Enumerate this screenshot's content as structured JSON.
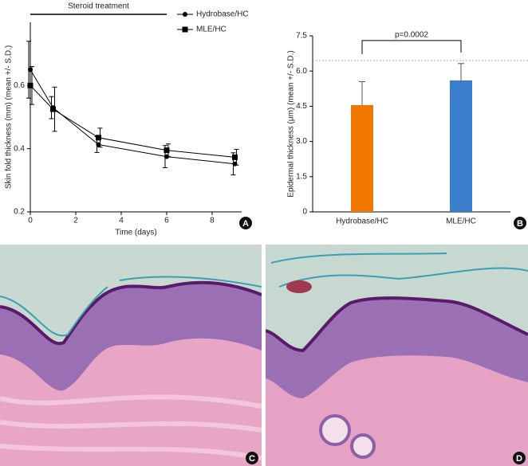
{
  "chart_data": [
    {
      "type": "line",
      "panel": "A",
      "x_label": "Time (days)",
      "y_label": "Skin fold thickness (mm) (mean +/- S.D.)",
      "x": [
        0,
        1,
        3,
        6,
        9
      ],
      "xlim": [
        0,
        9.3
      ],
      "xticks": [
        0,
        2,
        4,
        6,
        8
      ],
      "ylim": [
        0.2,
        0.8
      ],
      "yticks": [
        0.2,
        0.4,
        0.6
      ],
      "legend": "upper right",
      "annotation": {
        "text": "Steroid treatment",
        "from": 0,
        "to": 6
      },
      "series": [
        {
          "name": "Hydrobase/HC",
          "marker": "circle",
          "color": "#000000",
          "values": [
            0.65,
            0.53,
            0.413,
            0.375,
            0.352
          ],
          "errors": [
            0.09,
            0.035,
            0.025,
            0.035,
            0.035
          ]
        },
        {
          "name": "MLE/HC",
          "marker": "square",
          "color": "#000000",
          "values": [
            0.6,
            0.525,
            0.435,
            0.395,
            0.373
          ],
          "errors": [
            0.06,
            0.07,
            0.03,
            0.02,
            0.025
          ]
        }
      ]
    },
    {
      "type": "bar",
      "panel": "B",
      "y_label": "Epidermal thickness (μm) (mean +/- S.D.)",
      "categories": [
        "Hydrobase/HC",
        "MLE/HC"
      ],
      "values": [
        4.55,
        5.6
      ],
      "errors": [
        1.0,
        0.72
      ],
      "colors": [
        "#f07800",
        "#3b7fcc"
      ],
      "ylim": [
        0,
        7.5
      ],
      "yticks": [
        0,
        1.5,
        {
          "value": 3,
          "label": "3.0"
        },
        4.5,
        {
          "value": 6,
          "label": "6.0"
        },
        7.5
      ],
      "hline": 6.45,
      "significance": {
        "text": "p=0.0002",
        "y": 7.3
      }
    }
  ],
  "panels": [
    {
      "label": "C"
    },
    {
      "label": "D"
    }
  ]
}
